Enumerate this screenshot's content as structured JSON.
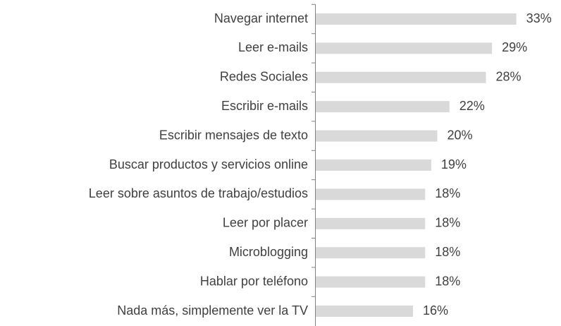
{
  "chart_data": {
    "type": "barh",
    "categories": [
      "Navegar internet",
      "Leer e-mails",
      "Redes Sociales",
      "Escribir e-mails",
      "Escribir mensajes de texto",
      "Buscar productos y servicios online",
      "Leer sobre asuntos de trabajo/estudios",
      "Leer por placer",
      "Microblogging",
      "Hablar por teléfono",
      "Nada más, simplemente ver la TV"
    ],
    "values": [
      33,
      29,
      28,
      22,
      20,
      19,
      18,
      18,
      18,
      18,
      16
    ],
    "value_labels": [
      "33%",
      "29%",
      "28%",
      "22%",
      "20%",
      "19%",
      "18%",
      "18%",
      "18%",
      "18%",
      "16%"
    ],
    "color": "#d9d9d9",
    "xlim": [
      0,
      40
    ]
  }
}
